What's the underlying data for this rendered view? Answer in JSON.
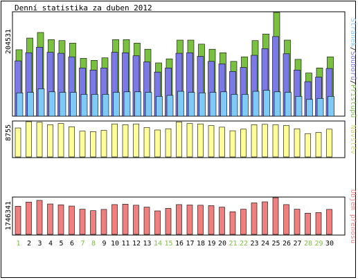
{
  "title": "Denní statistika za duben 2012",
  "colors": {
    "hits": "#7ac142",
    "files": "#7b79e6",
    "pages": "#7ec9f5",
    "visits": "#ffff99",
    "kbytes": "#f08080",
    "weekday_label": "#228b22",
    "weekend_label": "#7ac142"
  },
  "chart_data": [
    {
      "type": "bar",
      "name": "hits-files-pages",
      "categories": [
        "1",
        "2",
        "3",
        "4",
        "5",
        "6",
        "7",
        "8",
        "9",
        "10",
        "11",
        "12",
        "13",
        "14",
        "15",
        "16",
        "17",
        "18",
        "19",
        "20",
        "21",
        "22",
        "23",
        "24",
        "25",
        "26",
        "27",
        "28",
        "29",
        "30"
      ],
      "weekend_days": [
        "1",
        "7",
        "8",
        "14",
        "15",
        "21",
        "22",
        "28",
        "29"
      ],
      "ymax_label": "204531",
      "ylim": [
        0,
        204531
      ],
      "legend": {
        "pages": "Stránek",
        "sep1": "/",
        "files": "Souborů",
        "sep2": "/",
        "hits": "Přístupů"
      },
      "series": [
        {
          "name": "Přístupů",
          "key": "hits",
          "values": [
            131000,
            154000,
            165000,
            151000,
            149000,
            144000,
            114000,
            110000,
            115000,
            151000,
            151000,
            144000,
            132000,
            105000,
            113000,
            150000,
            150000,
            142000,
            132000,
            125000,
            108000,
            117000,
            149000,
            162000,
            204531,
            150000,
            112000,
            85000,
            95000,
            117000
          ]
        },
        {
          "name": "Souborů",
          "key": "files",
          "values": [
            109000,
            125000,
            136000,
            126000,
            124000,
            117000,
            95000,
            91000,
            95000,
            126000,
            125000,
            119000,
            107000,
            87000,
            95000,
            124000,
            125000,
            118000,
            108000,
            103000,
            88000,
            96000,
            120000,
            133000,
            157000,
            123000,
            91000,
            68000,
            77000,
            94000
          ]
        },
        {
          "name": "Stránek",
          "key": "pages",
          "values": [
            46000,
            47000,
            54000,
            48000,
            47000,
            47000,
            43000,
            43000,
            43000,
            47000,
            48000,
            48000,
            47000,
            39000,
            41000,
            49000,
            47000,
            46000,
            47000,
            48000,
            43000,
            43000,
            49000,
            51000,
            48000,
            47000,
            39000,
            33000,
            35000,
            39000
          ]
        }
      ]
    },
    {
      "type": "bar",
      "name": "visits",
      "categories": [
        "1",
        "2",
        "3",
        "4",
        "5",
        "6",
        "7",
        "8",
        "9",
        "10",
        "11",
        "12",
        "13",
        "14",
        "15",
        "16",
        "17",
        "18",
        "19",
        "20",
        "21",
        "22",
        "23",
        "24",
        "25",
        "26",
        "27",
        "28",
        "29",
        "30"
      ],
      "ymax_label": "8755",
      "ylim": [
        0,
        8755
      ],
      "legend": {
        "visits": "Návštěv"
      },
      "series": [
        {
          "name": "Návštěv",
          "key": "visits",
          "values": [
            7200,
            8755,
            8600,
            8000,
            8300,
            7500,
            6400,
            6300,
            6600,
            8200,
            8000,
            8200,
            7300,
            6700,
            7000,
            8700,
            8300,
            8200,
            7800,
            7400,
            6500,
            6900,
            8000,
            8100,
            8000,
            7800,
            7000,
            5800,
            6100,
            6900
          ]
        }
      ]
    },
    {
      "type": "bar",
      "name": "kbytes",
      "categories": [
        "1",
        "2",
        "3",
        "4",
        "5",
        "6",
        "7",
        "8",
        "9",
        "10",
        "11",
        "12",
        "13",
        "14",
        "15",
        "16",
        "17",
        "18",
        "19",
        "20",
        "21",
        "22",
        "23",
        "24",
        "25",
        "26",
        "27",
        "28",
        "29",
        "30"
      ],
      "ymax_label": "1746341",
      "ylim": [
        0,
        1746341
      ],
      "legend": {
        "kbytes": "Objem přenosu"
      },
      "series": [
        {
          "name": "Objem přenosu",
          "key": "kbytes",
          "values": [
            1340000,
            1540000,
            1620000,
            1450000,
            1410000,
            1350000,
            1200000,
            1130000,
            1190000,
            1420000,
            1440000,
            1390000,
            1300000,
            1120000,
            1240000,
            1420000,
            1400000,
            1390000,
            1370000,
            1300000,
            1080000,
            1200000,
            1500000,
            1550000,
            1746341,
            1420000,
            1200000,
            1010000,
            1040000,
            1190000
          ]
        }
      ]
    }
  ]
}
